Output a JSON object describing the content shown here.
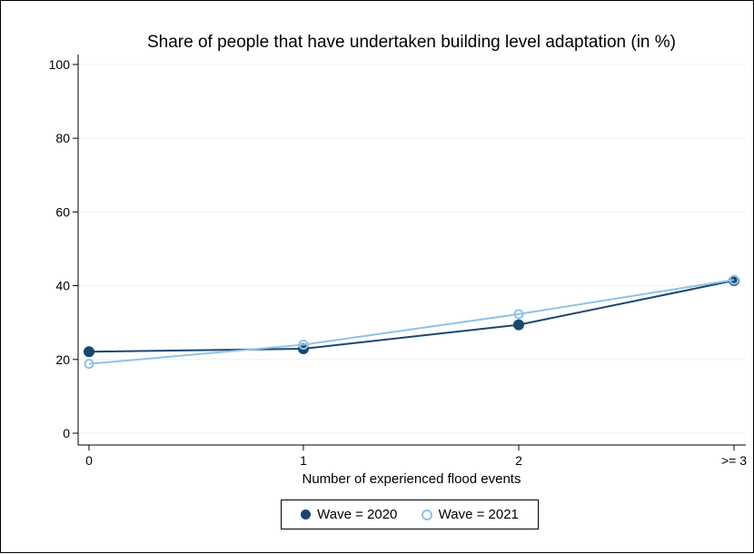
{
  "chart_data": {
    "type": "line",
    "title": "Share of people that have undertaken building level adaptation (in %)",
    "xlabel": "Number of experienced flood events",
    "ylabel": "",
    "categories": [
      "0",
      "1",
      "2",
      ">= 3"
    ],
    "ylim": [
      0,
      100
    ],
    "yticks": [
      0,
      20,
      40,
      60,
      80,
      100
    ],
    "grid": true,
    "legend_position": "bottom",
    "series": [
      {
        "name": "Wave = 2020",
        "values": [
          22.1,
          22.9,
          29.4,
          41.4
        ],
        "color": "#1a476f",
        "marker": "filled-circle"
      },
      {
        "name": "Wave = 2021",
        "values": [
          18.8,
          24.0,
          32.3,
          41.6
        ],
        "color": "#90c2e6",
        "marker": "hollow-circle"
      }
    ]
  }
}
